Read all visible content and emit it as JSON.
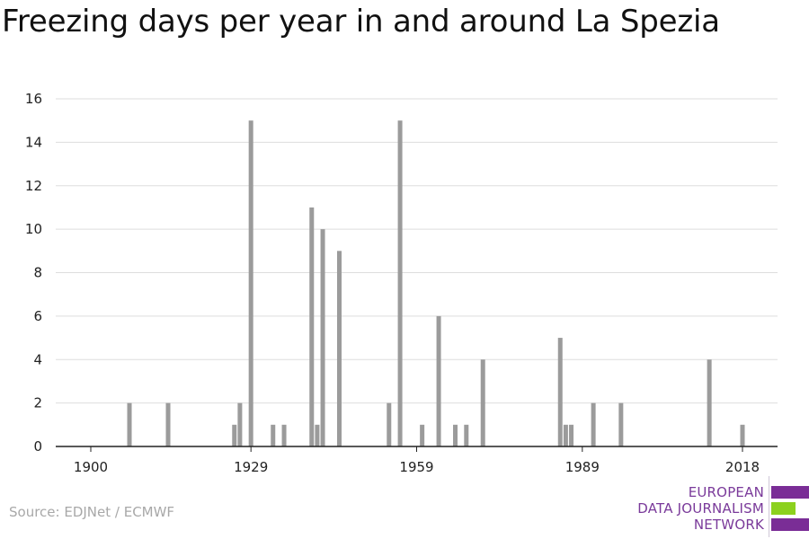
{
  "title": "Freezing days per year in and around La Spezia",
  "source": "Source: EDJNet / ECMWF",
  "logo": {
    "lines": [
      "EUROPEAN",
      "DATA JOURNALISM",
      "NETWORK"
    ],
    "colors": {
      "text": "#7a3a9a",
      "bar_purple": "#7a2d96",
      "bar_green": "#8cd11e"
    }
  },
  "chart_data": {
    "type": "bar",
    "title": "Freezing days per year in and around La Spezia",
    "xlabel": "",
    "ylabel": "",
    "x_ticks": [
      1900,
      1929,
      1959,
      1989,
      2018
    ],
    "y_ticks": [
      0,
      2,
      4,
      6,
      8,
      10,
      12,
      14,
      16
    ],
    "xlim": [
      1894,
      2024
    ],
    "ylim": [
      0,
      16
    ],
    "grid": true,
    "bar_color": "#9b9b9b",
    "points": [
      {
        "x": 1907,
        "y": 2
      },
      {
        "x": 1914,
        "y": 2
      },
      {
        "x": 1926,
        "y": 1
      },
      {
        "x": 1927,
        "y": 2
      },
      {
        "x": 1929,
        "y": 15
      },
      {
        "x": 1933,
        "y": 1
      },
      {
        "x": 1935,
        "y": 1
      },
      {
        "x": 1940,
        "y": 11
      },
      {
        "x": 1941,
        "y": 1
      },
      {
        "x": 1942,
        "y": 10
      },
      {
        "x": 1945,
        "y": 9
      },
      {
        "x": 1954,
        "y": 2
      },
      {
        "x": 1956,
        "y": 15
      },
      {
        "x": 1960,
        "y": 1
      },
      {
        "x": 1963,
        "y": 6
      },
      {
        "x": 1966,
        "y": 1
      },
      {
        "x": 1968,
        "y": 1
      },
      {
        "x": 1971,
        "y": 4
      },
      {
        "x": 1985,
        "y": 5
      },
      {
        "x": 1986,
        "y": 1
      },
      {
        "x": 1987,
        "y": 1
      },
      {
        "x": 1991,
        "y": 2
      },
      {
        "x": 1996,
        "y": 2
      },
      {
        "x": 2012,
        "y": 4
      },
      {
        "x": 2018,
        "y": 1
      }
    ]
  }
}
